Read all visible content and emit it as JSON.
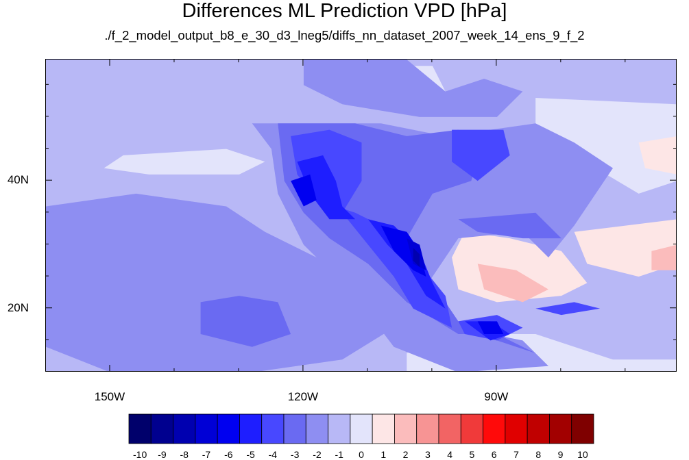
{
  "chart_data": {
    "type": "heatmap",
    "title": "Differences ML Prediction VPD [hPa]",
    "subtitle": "./f_2_model_output_b8_e_30_d3_lneg5/diffs_nn_dataset_2007_week_14_ens_9_f_2",
    "projection": "cylindrical equidistant",
    "xlim": [
      -160,
      -62
    ],
    "ylim": [
      10,
      59
    ],
    "x_ticks": [
      {
        "value": -150,
        "label": "150W"
      },
      {
        "value": -120,
        "label": "120W"
      },
      {
        "value": -90,
        "label": "90W"
      }
    ],
    "y_ticks": [
      {
        "value": 20,
        "label": "20N"
      },
      {
        "value": 40,
        "label": "40N"
      }
    ],
    "colorbar": {
      "labels": [
        "-10",
        "-9",
        "-8",
        "-7",
        "-6",
        "-5",
        "-4",
        "-3",
        "-2",
        "-1",
        "0",
        "1",
        "2",
        "3",
        "4",
        "5",
        "6",
        "7",
        "8",
        "9",
        "10"
      ],
      "colors": [
        "#00006b",
        "#00008f",
        "#0000b0",
        "#0000d6",
        "#0000f0",
        "#1e1eff",
        "#4848ff",
        "#6a6af2",
        "#8e8ef2",
        "#b8b8f6",
        "#e3e4fb",
        "#fde6e6",
        "#fbbcbc",
        "#f79494",
        "#f26464",
        "#f03a3a",
        "#ff0a0a",
        "#e00000",
        "#c00000",
        "#a20000",
        "#7f0000"
      ]
    },
    "regions": [
      {
        "value": -0.5,
        "points": [
          [
            -160,
            59
          ],
          [
            -62,
            59
          ],
          [
            -62,
            10
          ],
          [
            -160,
            10
          ]
        ]
      },
      {
        "value": 0.5,
        "points": [
          [
            -116,
            58
          ],
          [
            -100,
            58
          ],
          [
            -98,
            54
          ],
          [
            -104,
            52
          ],
          [
            -112,
            53
          ],
          [
            -117,
            56
          ]
        ]
      },
      {
        "value": 0.5,
        "points": [
          [
            -148,
            44
          ],
          [
            -132,
            45
          ],
          [
            -126,
            43
          ],
          [
            -130,
            41
          ],
          [
            -144,
            41
          ],
          [
            -151,
            42
          ]
        ]
      },
      {
        "value": 0.5,
        "points": [
          [
            -84,
            53
          ],
          [
            -62,
            52
          ],
          [
            -62,
            40
          ],
          [
            -68,
            38
          ],
          [
            -78,
            44
          ],
          [
            -84,
            48
          ]
        ]
      },
      {
        "value": 0.5,
        "points": [
          [
            -100,
            16
          ],
          [
            -84,
            16
          ],
          [
            -72,
            12
          ],
          [
            -62,
            12
          ],
          [
            -62,
            10
          ],
          [
            -104,
            10
          ],
          [
            -104,
            13
          ]
        ]
      },
      {
        "value": 1.5,
        "points": [
          [
            -95,
            32
          ],
          [
            -88,
            31
          ],
          [
            -80,
            29
          ],
          [
            -76,
            24
          ],
          [
            -80,
            22
          ],
          [
            -90,
            21
          ],
          [
            -96,
            23
          ],
          [
            -97,
            28
          ]
        ]
      },
      {
        "value": 1.5,
        "points": [
          [
            -78,
            32
          ],
          [
            -62,
            34
          ],
          [
            -62,
            27
          ],
          [
            -68,
            25
          ],
          [
            -76,
            27
          ]
        ]
      },
      {
        "value": 1.5,
        "points": [
          [
            -68,
            46
          ],
          [
            -62,
            47
          ],
          [
            -62,
            41
          ],
          [
            -67,
            42
          ]
        ]
      },
      {
        "value": 2.5,
        "points": [
          [
            -93,
            27
          ],
          [
            -87,
            26
          ],
          [
            -82,
            23
          ],
          [
            -86,
            21
          ],
          [
            -92,
            23
          ]
        ]
      },
      {
        "value": 2.5,
        "points": [
          [
            -66,
            29
          ],
          [
            -62,
            30
          ],
          [
            -62,
            26
          ],
          [
            -66,
            26
          ]
        ]
      },
      {
        "value": -1.5,
        "points": [
          [
            -160,
            36
          ],
          [
            -146,
            38
          ],
          [
            -132,
            36
          ],
          [
            -126,
            32
          ],
          [
            -118,
            28
          ],
          [
            -110,
            22
          ],
          [
            -106,
            17
          ],
          [
            -114,
            12
          ],
          [
            -128,
            10
          ],
          [
            -150,
            10
          ],
          [
            -160,
            14
          ]
        ]
      },
      {
        "value": -1.5,
        "points": [
          [
            -128,
            49
          ],
          [
            -108,
            49
          ],
          [
            -98,
            47
          ],
          [
            -84,
            49
          ],
          [
            -78,
            46
          ],
          [
            -72,
            42
          ],
          [
            -78,
            33
          ],
          [
            -82,
            28
          ],
          [
            -86,
            32
          ],
          [
            -96,
            31
          ],
          [
            -102,
            22
          ],
          [
            -96,
            17
          ],
          [
            -86,
            15
          ],
          [
            -82,
            11
          ],
          [
            -96,
            10
          ],
          [
            -106,
            14
          ],
          [
            -112,
            22
          ],
          [
            -120,
            30
          ],
          [
            -124,
            38
          ],
          [
            -125,
            45
          ]
        ]
      },
      {
        "value": -1.5,
        "points": [
          [
            -120,
            59
          ],
          [
            -104,
            59
          ],
          [
            -98,
            54
          ],
          [
            -92,
            56
          ],
          [
            -86,
            54
          ],
          [
            -90,
            50
          ],
          [
            -102,
            50
          ],
          [
            -114,
            52
          ],
          [
            -120,
            55
          ]
        ]
      },
      {
        "value": -2.5,
        "points": [
          [
            -124,
            49
          ],
          [
            -112,
            49
          ],
          [
            -104,
            47
          ],
          [
            -96,
            48
          ],
          [
            -92,
            46
          ],
          [
            -94,
            40
          ],
          [
            -100,
            38
          ],
          [
            -104,
            31
          ],
          [
            -100,
            24
          ],
          [
            -96,
            18
          ],
          [
            -90,
            15
          ],
          [
            -84,
            13
          ],
          [
            -90,
            16
          ],
          [
            -96,
            16
          ],
          [
            -104,
            21
          ],
          [
            -110,
            27
          ],
          [
            -116,
            31
          ],
          [
            -120,
            35
          ],
          [
            -123,
            40
          ]
        ]
      },
      {
        "value": -2.5,
        "points": [
          [
            -96,
            34
          ],
          [
            -84,
            35
          ],
          [
            -80,
            31
          ],
          [
            -86,
            31
          ],
          [
            -93,
            32
          ]
        ]
      },
      {
        "value": -2.5,
        "points": [
          [
            -136,
            21
          ],
          [
            -130,
            22
          ],
          [
            -124,
            21
          ],
          [
            -122,
            16
          ],
          [
            -128,
            14
          ],
          [
            -136,
            16
          ]
        ]
      },
      {
        "value": -3.5,
        "points": [
          [
            -122,
            47
          ],
          [
            -116,
            48
          ],
          [
            -111,
            46
          ],
          [
            -111,
            40
          ],
          [
            -114,
            35
          ],
          [
            -110,
            30
          ],
          [
            -106,
            25
          ],
          [
            -103,
            20
          ],
          [
            -97,
            17
          ],
          [
            -98,
            22
          ],
          [
            -102,
            27
          ],
          [
            -106,
            32
          ],
          [
            -112,
            35
          ],
          [
            -118,
            37
          ],
          [
            -121,
            41
          ]
        ]
      },
      {
        "value": -3.5,
        "points": [
          [
            -97,
            48
          ],
          [
            -89,
            48
          ],
          [
            -88,
            44
          ],
          [
            -93,
            40
          ],
          [
            -97,
            43
          ]
        ]
      },
      {
        "value": -3.5,
        "points": [
          [
            -96,
            18
          ],
          [
            -90,
            19
          ],
          [
            -86,
            17
          ],
          [
            -90,
            15
          ],
          [
            -95,
            16
          ]
        ]
      },
      {
        "value": -3.5,
        "points": [
          [
            -84,
            20
          ],
          [
            -78,
            21
          ],
          [
            -74,
            20
          ],
          [
            -80,
            19
          ]
        ]
      },
      {
        "value": -4.5,
        "points": [
          [
            -121,
            43
          ],
          [
            -117,
            44
          ],
          [
            -115,
            40
          ],
          [
            -114,
            36
          ],
          [
            -112,
            34
          ],
          [
            -116,
            34
          ],
          [
            -119,
            38
          ]
        ]
      },
      {
        "value": -4.5,
        "points": [
          [
            -110,
            34
          ],
          [
            -106,
            33
          ],
          [
            -102,
            29
          ],
          [
            -100,
            24
          ],
          [
            -98,
            20
          ],
          [
            -101,
            22
          ],
          [
            -104,
            27
          ],
          [
            -107,
            30
          ]
        ]
      },
      {
        "value": -4.5,
        "points": [
          [
            -95,
            18
          ],
          [
            -91,
            18
          ],
          [
            -88,
            16
          ],
          [
            -91,
            15
          ]
        ]
      },
      {
        "value": -5.5,
        "points": [
          [
            -108,
            33
          ],
          [
            -104,
            32
          ],
          [
            -102,
            29
          ],
          [
            -101,
            25
          ],
          [
            -103,
            26
          ],
          [
            -106,
            29
          ]
        ]
      },
      {
        "value": -5.5,
        "points": [
          [
            -122,
            40
          ],
          [
            -119,
            41
          ],
          [
            -118,
            37
          ],
          [
            -120,
            36
          ],
          [
            -121,
            38
          ]
        ]
      },
      {
        "value": -5.5,
        "points": [
          [
            -93,
            18
          ],
          [
            -90,
            18
          ],
          [
            -89,
            16
          ],
          [
            -92,
            16
          ]
        ]
      },
      {
        "value": -6.5,
        "points": [
          [
            -104,
            31
          ],
          [
            -102,
            30
          ],
          [
            -101,
            26
          ],
          [
            -103,
            27
          ]
        ]
      },
      {
        "value": -7.5,
        "points": [
          [
            -103,
            29.5
          ],
          [
            -102,
            28.5
          ],
          [
            -102,
            26.5
          ],
          [
            -103,
            27.5
          ]
        ]
      }
    ]
  }
}
